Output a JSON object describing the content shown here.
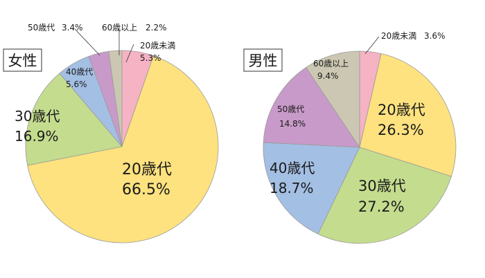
{
  "chart_data": [
    {
      "type": "pie",
      "title": "女性",
      "slices": [
        {
          "label": "20歳未満",
          "value": 5.3,
          "value_label": "5.3%",
          "color": "#f5b3c4"
        },
        {
          "label": "20歳代",
          "value": 66.5,
          "value_label": "66.5%",
          "color": "#fde27f"
        },
        {
          "label": "30歳代",
          "value": 16.9,
          "value_label": "16.9%",
          "color": "#c4dc8e"
        },
        {
          "label": "40歳代",
          "value": 5.6,
          "value_label": "5.6%",
          "color": "#a4bfe4"
        },
        {
          "label": "50歳代",
          "value": 3.4,
          "value_label": "3.4%",
          "color": "#c89ac9"
        },
        {
          "label": "60歳以上",
          "value": 2.2,
          "value_label": "2.2%",
          "color": "#cbc7b2"
        }
      ]
    },
    {
      "type": "pie",
      "title": "男性",
      "slices": [
        {
          "label": "20歳未満",
          "value": 3.6,
          "value_label": "3.6%",
          "color": "#f5b3c4"
        },
        {
          "label": "20歳代",
          "value": 26.3,
          "value_label": "26.3%",
          "color": "#fde27f"
        },
        {
          "label": "30歳代",
          "value": 27.2,
          "value_label": "27.2%",
          "color": "#c4dc8e"
        },
        {
          "label": "40歳代",
          "value": 18.7,
          "value_label": "18.7%",
          "color": "#a4bfe4"
        },
        {
          "label": "50歳代",
          "value": 14.8,
          "value_label": "14.8%",
          "color": "#c89ac9"
        },
        {
          "label": "60歳以上",
          "value": 9.4,
          "value_label": "9.4%",
          "color": "#cbc7b2"
        }
      ]
    }
  ]
}
